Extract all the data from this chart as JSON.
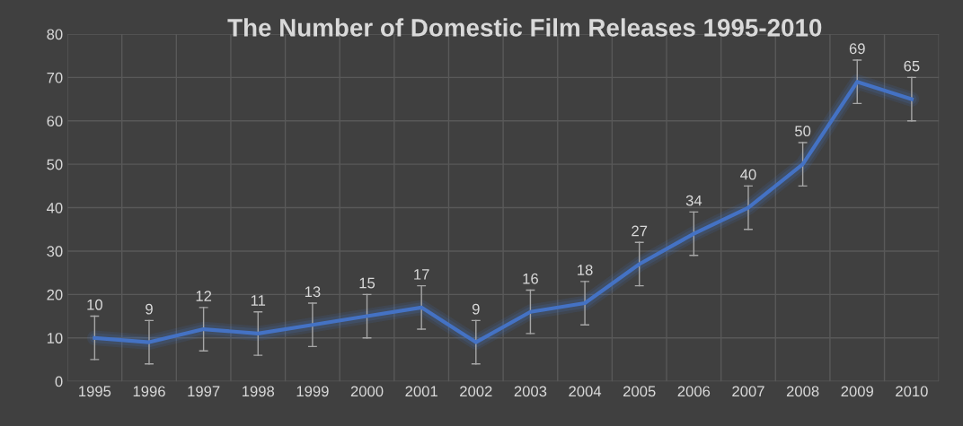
{
  "chart_data": {
    "type": "line",
    "title": "The Number of Domestic Film Releases 1995-2010",
    "categories": [
      "1995",
      "1996",
      "1997",
      "1998",
      "1999",
      "2000",
      "2001",
      "2002",
      "2003",
      "2004",
      "2005",
      "2006",
      "2007",
      "2008",
      "2009",
      "2010"
    ],
    "series": [
      {
        "color": "#4472c4",
        "values": [
          10,
          9,
          12,
          11,
          13,
          15,
          17,
          9,
          16,
          18,
          27,
          34,
          40,
          50,
          69,
          65
        ],
        "errors": [
          5,
          5,
          5,
          5,
          5,
          5,
          5,
          5,
          5,
          5,
          5,
          5,
          5,
          5,
          5,
          5
        ]
      }
    ],
    "ylim": [
      0,
      80
    ],
    "yticks": [
      0,
      10,
      20,
      30,
      40,
      50,
      60,
      70,
      80
    ],
    "grid": true,
    "data_labels": true,
    "legend": false,
    "marker": "none",
    "line_style": "solid"
  }
}
